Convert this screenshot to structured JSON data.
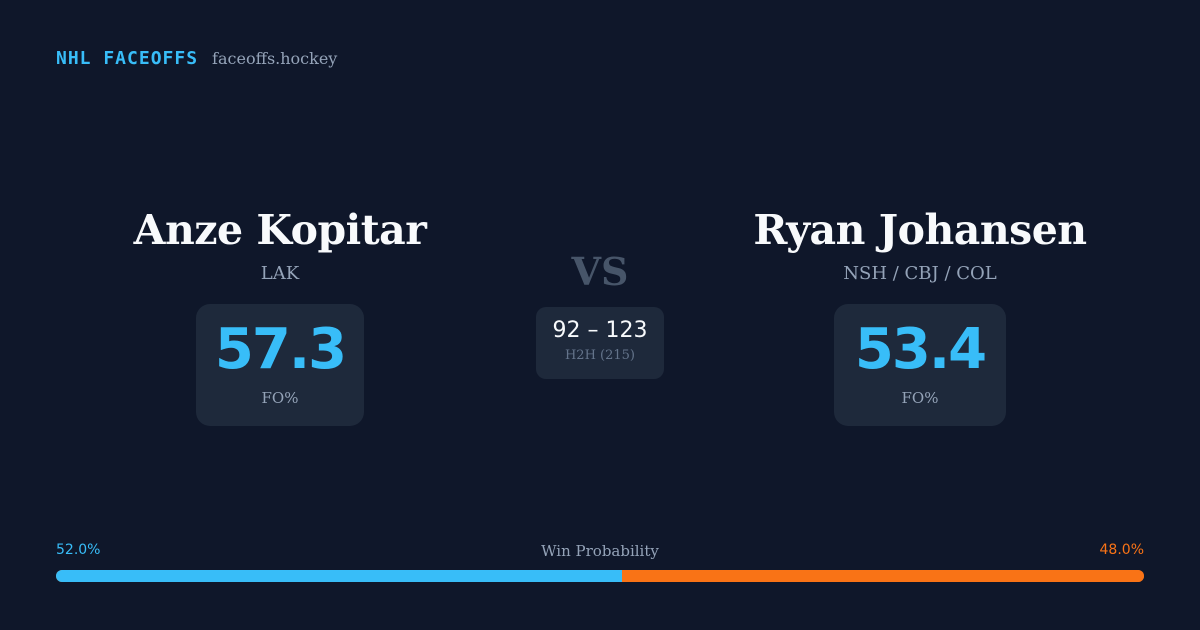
{
  "brand": {
    "name": "NHL FACEOFFS",
    "domain": "faceoffs.hockey"
  },
  "player1": {
    "name": "Anze Kopitar",
    "team": "LAK",
    "fo_pct": "57.3",
    "fo_label": "FO%"
  },
  "player2": {
    "name": "Ryan Johansen",
    "team": "NSH / CBJ / COL",
    "fo_pct": "53.4",
    "fo_label": "FO%"
  },
  "versus": {
    "label": "VS",
    "h2h_score": "92 – 123",
    "h2h_label": "H2H (215)"
  },
  "win_probability": {
    "title": "Win Probability",
    "left_label": "52.0%",
    "right_label": "48.0%",
    "left_value": 52.0,
    "right_value": 48.0
  },
  "colors": {
    "background": "#0f172a",
    "card": "#1e293b",
    "accent_blue": "#38bdf8",
    "accent_orange": "#f97316",
    "muted_text": "#94a3b8"
  }
}
